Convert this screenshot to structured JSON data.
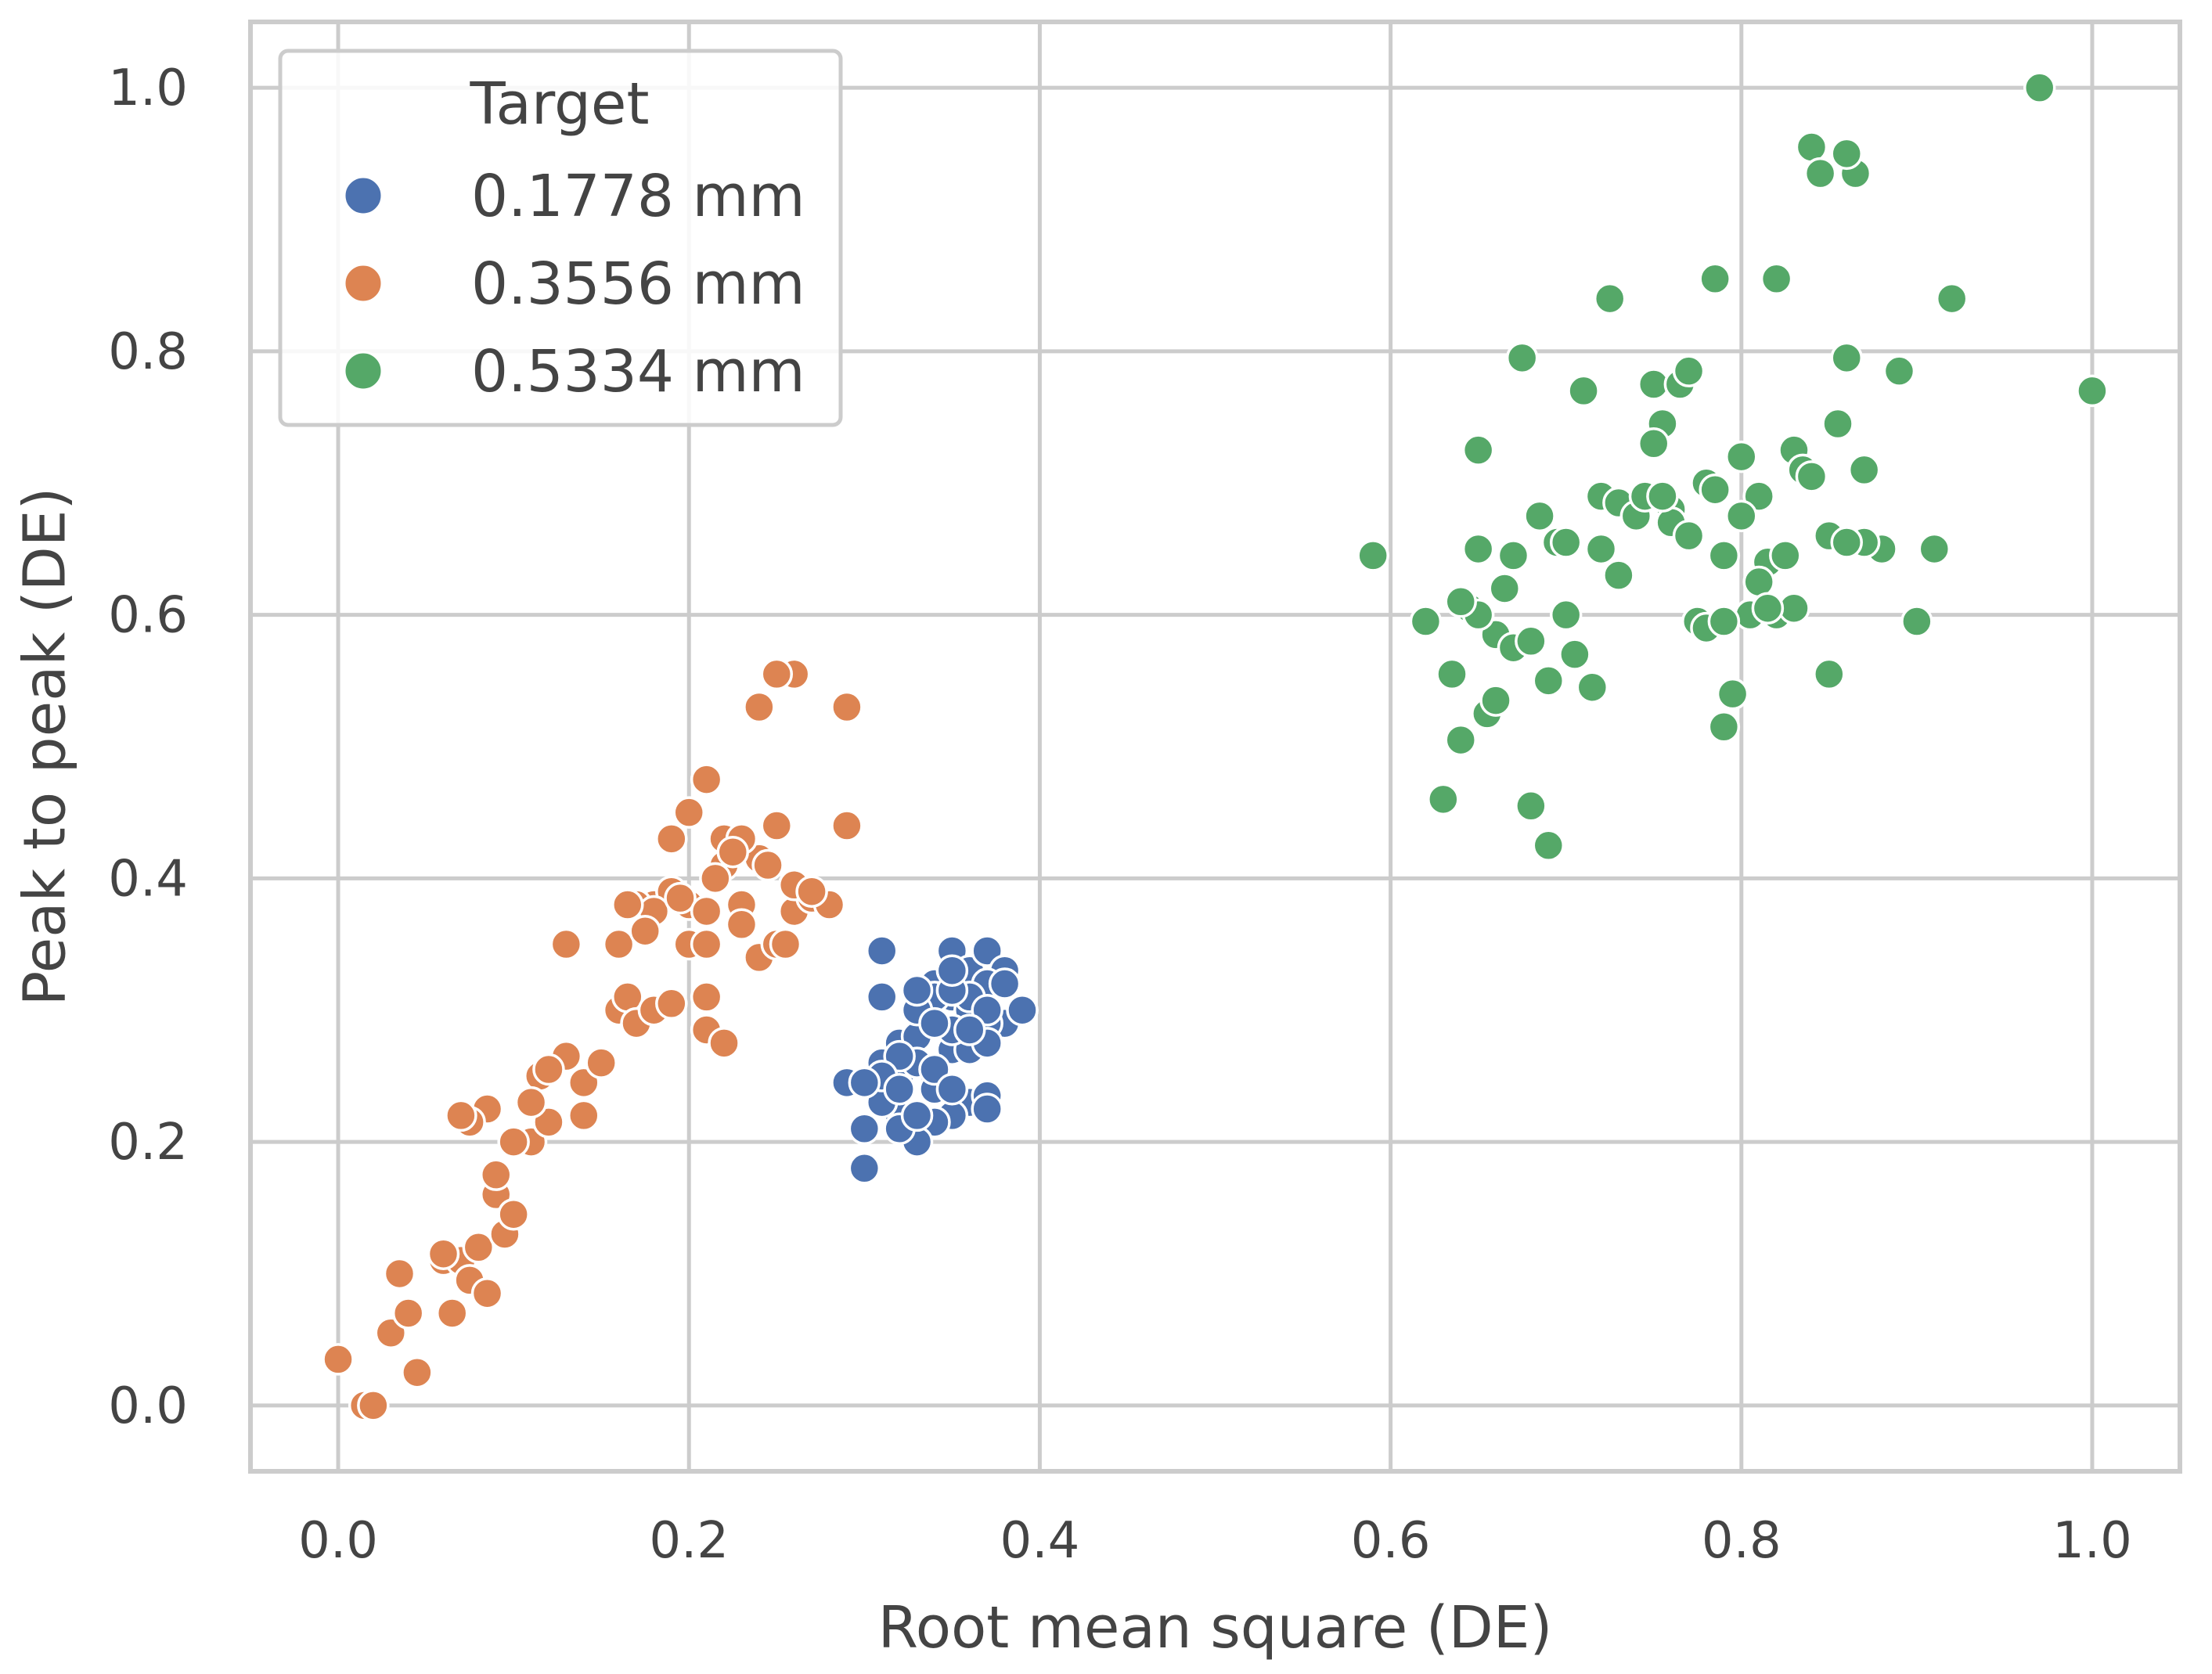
{
  "chart_data": {
    "type": "scatter",
    "title": "",
    "xlabel": "Root mean square (DE)",
    "ylabel": "Peak to peak (DE)",
    "xlim": [
      -0.05,
      1.05
    ],
    "ylim": [
      -0.05,
      1.05
    ],
    "xticks": [
      0.0,
      0.2,
      0.4,
      0.6,
      0.8,
      1.0
    ],
    "yticks": [
      0.0,
      0.2,
      0.4,
      0.6,
      0.8,
      1.0
    ],
    "xtick_labels": [
      "0.0",
      "0.2",
      "0.4",
      "0.6",
      "0.8",
      "1.0"
    ],
    "ytick_labels": [
      "0.0",
      "0.2",
      "0.4",
      "0.6",
      "0.8",
      "1.0"
    ],
    "grid": true,
    "legend": {
      "title": "Target",
      "placement": "top-left"
    },
    "series": [
      {
        "name": "0.1778 mm",
        "color": "#4c72b0",
        "x": [
          0.31,
          0.31,
          0.3,
          0.3,
          0.31,
          0.32,
          0.33,
          0.34,
          0.35,
          0.36,
          0.37,
          0.38,
          0.39,
          0.35,
          0.36,
          0.37,
          0.34,
          0.33,
          0.32,
          0.31,
          0.3,
          0.32,
          0.34,
          0.36,
          0.38,
          0.35,
          0.33,
          0.34,
          0.36,
          0.37,
          0.35,
          0.34,
          0.33,
          0.32,
          0.31,
          0.36,
          0.37,
          0.38,
          0.34,
          0.35,
          0.33,
          0.32,
          0.36,
          0.35,
          0.34,
          0.37,
          0.29,
          0.3,
          0.31,
          0.33,
          0.35,
          0.37,
          0.39,
          0.36,
          0.34,
          0.32,
          0.3,
          0.33,
          0.35,
          0.37
        ],
        "y": [
          0.345,
          0.31,
          0.18,
          0.245,
          0.26,
          0.275,
          0.3,
          0.32,
          0.345,
          0.33,
          0.345,
          0.33,
          0.3,
          0.31,
          0.3,
          0.32,
          0.29,
          0.28,
          0.25,
          0.24,
          0.21,
          0.22,
          0.25,
          0.28,
          0.29,
          0.27,
          0.26,
          0.24,
          0.23,
          0.235,
          0.22,
          0.215,
          0.2,
          0.21,
          0.23,
          0.31,
          0.29,
          0.32,
          0.31,
          0.315,
          0.3,
          0.265,
          0.27,
          0.285,
          0.29,
          0.3,
          0.245,
          0.21,
          0.25,
          0.315,
          0.33,
          0.275,
          0.3,
          0.285,
          0.255,
          0.24,
          0.245,
          0.22,
          0.24,
          0.225
        ]
      },
      {
        "name": "0.3556 mm",
        "color": "#dd8452",
        "x": [
          0.0,
          0.015,
          0.02,
          0.03,
          0.035,
          0.04,
          0.045,
          0.06,
          0.065,
          0.07,
          0.075,
          0.08,
          0.085,
          0.09,
          0.095,
          0.09,
          0.1,
          0.11,
          0.115,
          0.12,
          0.13,
          0.14,
          0.15,
          0.16,
          0.165,
          0.17,
          0.18,
          0.19,
          0.2,
          0.21,
          0.22,
          0.23,
          0.24,
          0.25,
          0.26,
          0.27,
          0.28,
          0.29,
          0.29,
          0.26,
          0.25,
          0.24,
          0.23,
          0.22,
          0.21,
          0.2,
          0.19,
          0.18,
          0.17,
          0.16,
          0.15,
          0.14,
          0.13,
          0.12,
          0.11,
          0.1,
          0.085,
          0.075,
          0.07,
          0.06,
          0.21,
          0.22,
          0.23,
          0.24,
          0.25,
          0.2,
          0.19,
          0.18,
          0.21,
          0.245,
          0.26,
          0.27,
          0.225,
          0.215,
          0.195,
          0.175,
          0.165,
          0.21,
          0.23,
          0.255
        ],
        "y": [
          0.035,
          0.0,
          0.0,
          0.055,
          0.1,
          0.07,
          0.025,
          0.11,
          0.07,
          0.11,
          0.095,
          0.12,
          0.085,
          0.16,
          0.13,
          0.175,
          0.145,
          0.2,
          0.25,
          0.215,
          0.265,
          0.245,
          0.26,
          0.3,
          0.31,
          0.29,
          0.3,
          0.305,
          0.35,
          0.35,
          0.43,
          0.425,
          0.415,
          0.44,
          0.375,
          0.385,
          0.38,
          0.44,
          0.53,
          0.555,
          0.555,
          0.53,
          0.43,
          0.41,
          0.475,
          0.45,
          0.43,
          0.38,
          0.38,
          0.35,
          0.26,
          0.22,
          0.35,
          0.255,
          0.23,
          0.2,
          0.225,
          0.215,
          0.22,
          0.115,
          0.285,
          0.275,
          0.38,
          0.34,
          0.35,
          0.38,
          0.39,
          0.375,
          0.31,
          0.41,
          0.395,
          0.39,
          0.42,
          0.4,
          0.385,
          0.36,
          0.38,
          0.375,
          0.365,
          0.35
        ]
      },
      {
        "name": "0.5334 mm",
        "color": "#55a868",
        "x": [
          0.59,
          0.62,
          0.63,
          0.635,
          0.64,
          0.645,
          0.65,
          0.65,
          0.655,
          0.66,
          0.665,
          0.67,
          0.675,
          0.68,
          0.685,
          0.69,
          0.695,
          0.7,
          0.705,
          0.71,
          0.715,
          0.72,
          0.725,
          0.73,
          0.74,
          0.745,
          0.75,
          0.755,
          0.76,
          0.765,
          0.77,
          0.775,
          0.78,
          0.785,
          0.79,
          0.795,
          0.8,
          0.805,
          0.81,
          0.815,
          0.82,
          0.825,
          0.83,
          0.835,
          0.84,
          0.845,
          0.85,
          0.855,
          0.86,
          0.865,
          0.87,
          0.88,
          0.89,
          0.9,
          0.91,
          0.92,
          0.97,
          1.0,
          0.82,
          0.86,
          0.75,
          0.65,
          0.67,
          0.69,
          0.72,
          0.76,
          0.79,
          0.8,
          0.83,
          0.85,
          0.87,
          0.68,
          0.7,
          0.73,
          0.77,
          0.78,
          0.81,
          0.84,
          0.86,
          0.66,
          0.64,
          0.755,
          0.785,
          0.815,
          0.79
        ],
        "y": [
          0.645,
          0.595,
          0.46,
          0.555,
          0.505,
          0.605,
          0.725,
          0.65,
          0.525,
          0.585,
          0.62,
          0.575,
          0.795,
          0.455,
          0.675,
          0.425,
          0.655,
          0.6,
          0.57,
          0.77,
          0.545,
          0.69,
          0.84,
          0.685,
          0.675,
          0.69,
          0.775,
          0.745,
          0.68,
          0.775,
          0.785,
          0.595,
          0.7,
          0.855,
          0.515,
          0.54,
          0.72,
          0.6,
          0.69,
          0.64,
          0.855,
          0.645,
          0.725,
          0.71,
          0.955,
          0.935,
          0.555,
          0.745,
          0.795,
          0.935,
          0.71,
          0.65,
          0.785,
          0.595,
          0.65,
          0.84,
          1.0,
          0.77,
          0.6,
          0.95,
          0.73,
          0.6,
          0.645,
          0.55,
          0.65,
          0.67,
          0.645,
          0.675,
          0.605,
          0.66,
          0.655,
          0.58,
          0.655,
          0.63,
          0.66,
          0.59,
          0.625,
          0.705,
          0.655,
          0.535,
          0.61,
          0.69,
          0.695,
          0.605,
          0.595
        ]
      }
    ]
  }
}
